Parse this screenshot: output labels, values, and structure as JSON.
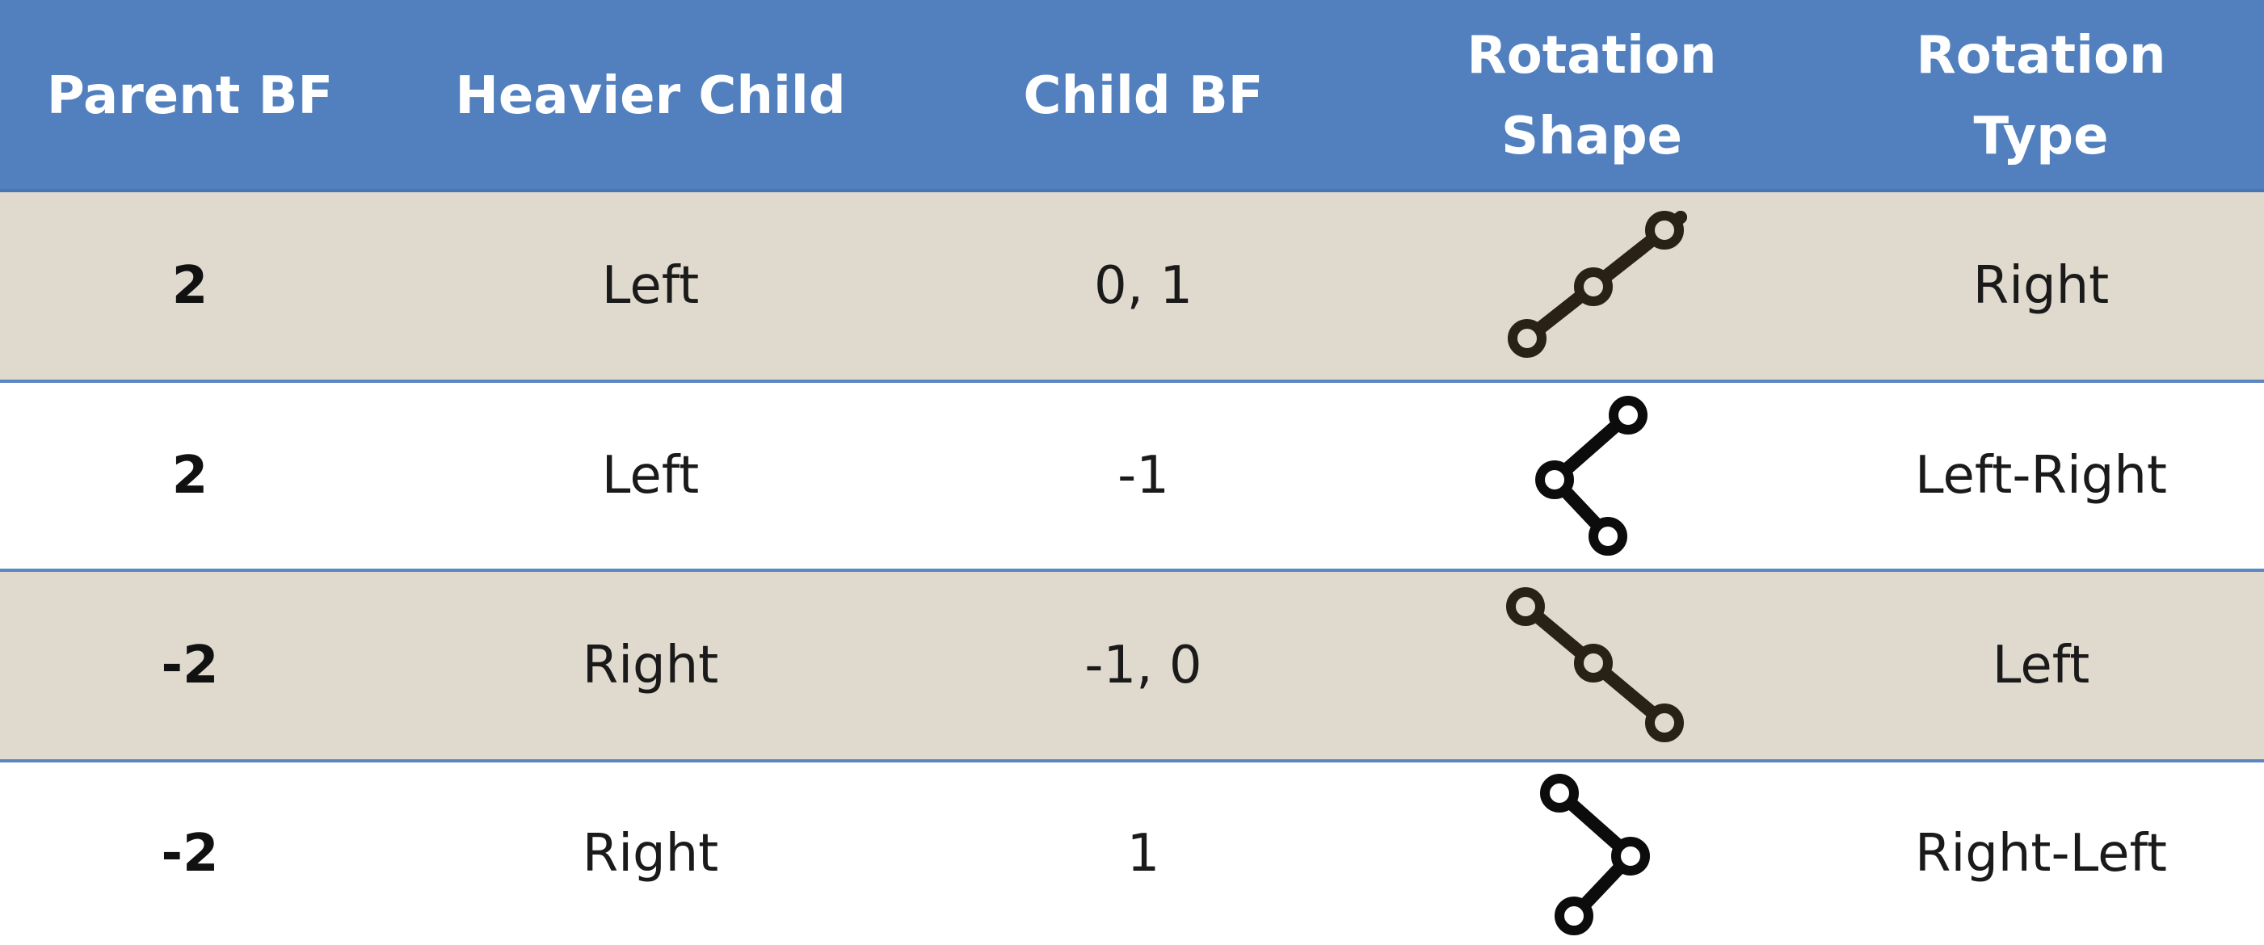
{
  "header": {
    "parent_bf": "Parent BF",
    "heavier_child": "Heavier Child",
    "child_bf": "Child BF",
    "rotation_shape": "Rotation\nShape",
    "rotation_type": "Rotation\nType"
  },
  "rows": [
    {
      "parent_bf": "2",
      "heavier_child": "Left",
      "child_bf": "0, 1",
      "shape": "left-left-line-icon",
      "rotation_type": "Right"
    },
    {
      "parent_bf": "2",
      "heavier_child": "Left",
      "child_bf": "-1",
      "shape": "left-right-zigzag-icon",
      "rotation_type": "Left-Right"
    },
    {
      "parent_bf": "-2",
      "heavier_child": "Right",
      "child_bf": "-1, 0",
      "shape": "right-right-line-icon",
      "rotation_type": "Left"
    },
    {
      "parent_bf": "-2",
      "heavier_child": "Right",
      "child_bf": "1",
      "shape": "right-left-zigzag-icon",
      "rotation_type": "Right-Left"
    }
  ]
}
